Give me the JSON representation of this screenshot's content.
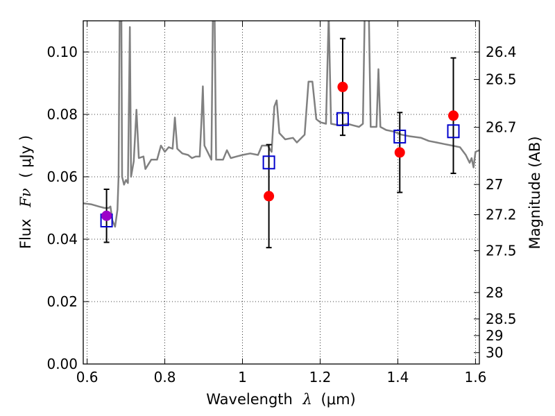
{
  "chart_data": {
    "type": "scatter",
    "xlabel": "Wavelength",
    "xlabel_symbol": "λ",
    "xlabel_unit": "(μm)",
    "ylabel": "Flux",
    "ylabel_symbol": "Fν",
    "ylabel_unit": "( μJy )",
    "y2label": "Magnitude (AB)",
    "xlim": [
      0.59,
      1.61
    ],
    "ylim": [
      0.0,
      0.11
    ],
    "grid": true,
    "grid_style": "dotted",
    "colors": {
      "spectrum": "#808080",
      "observed": "#ff0000",
      "model": "#0000cc",
      "blended": "#9b00c8",
      "errorbar": "#000000"
    },
    "x_ticks": [
      {
        "value": 0.6,
        "label": "0.6"
      },
      {
        "value": 0.8,
        "label": "0.8"
      },
      {
        "value": 1.0,
        "label": "1"
      },
      {
        "value": 1.2,
        "label": "1.2"
      },
      {
        "value": 1.4,
        "label": "1.4"
      },
      {
        "value": 1.6,
        "label": "1.6"
      }
    ],
    "y_ticks": [
      {
        "value": 0.0,
        "label": "0.00"
      },
      {
        "value": 0.02,
        "label": "0.02"
      },
      {
        "value": 0.04,
        "label": "0.04"
      },
      {
        "value": 0.06,
        "label": "0.06"
      },
      {
        "value": 0.08,
        "label": "0.08"
      },
      {
        "value": 0.1,
        "label": "0.10"
      }
    ],
    "y2_ticks": [
      {
        "mag": 26.4,
        "label": "26.4"
      },
      {
        "mag": 26.5,
        "label": "26.5"
      },
      {
        "mag": 26.7,
        "label": "26.7"
      },
      {
        "mag": 27.0,
        "label": "27"
      },
      {
        "mag": 27.2,
        "label": "27.2"
      },
      {
        "mag": 27.5,
        "label": "27.5"
      },
      {
        "mag": 28.0,
        "label": "28"
      },
      {
        "mag": 28.5,
        "label": "28.5"
      },
      {
        "mag": 29.0,
        "label": "29"
      },
      {
        "mag": 30.0,
        "label": "30"
      }
    ],
    "observed": [
      {
        "x": 0.65,
        "y": 0.0475,
        "err": 0.0085
      },
      {
        "x": 1.068,
        "y": 0.0538,
        "err": 0.0165
      },
      {
        "x": 1.258,
        "y": 0.0888,
        "err": 0.0155
      },
      {
        "x": 1.405,
        "y": 0.0678,
        "err": 0.0128
      },
      {
        "x": 1.543,
        "y": 0.0796,
        "err": 0.0185
      }
    ],
    "model": [
      {
        "x": 0.65,
        "y": 0.046
      },
      {
        "x": 1.068,
        "y": 0.0646
      },
      {
        "x": 1.258,
        "y": 0.0785
      },
      {
        "x": 1.405,
        "y": 0.0729
      },
      {
        "x": 1.543,
        "y": 0.0746
      }
    ],
    "spectrum": [
      [
        0.59,
        0.0515
      ],
      [
        0.61,
        0.0512
      ],
      [
        0.63,
        0.0505
      ],
      [
        0.645,
        0.05
      ],
      [
        0.655,
        0.05
      ],
      [
        0.66,
        0.0505
      ],
      [
        0.665,
        0.046
      ],
      [
        0.672,
        0.044
      ],
      [
        0.678,
        0.0495
      ],
      [
        0.681,
        0.06
      ],
      [
        0.684,
        0.115
      ],
      [
        0.688,
        0.115
      ],
      [
        0.69,
        0.06
      ],
      [
        0.695,
        0.0575
      ],
      [
        0.7,
        0.059
      ],
      [
        0.705,
        0.058
      ],
      [
        0.71,
        0.108
      ],
      [
        0.713,
        0.06
      ],
      [
        0.72,
        0.065
      ],
      [
        0.727,
        0.0815
      ],
      [
        0.733,
        0.066
      ],
      [
        0.745,
        0.0665
      ],
      [
        0.75,
        0.0625
      ],
      [
        0.765,
        0.0655
      ],
      [
        0.78,
        0.0655
      ],
      [
        0.79,
        0.07
      ],
      [
        0.8,
        0.068
      ],
      [
        0.81,
        0.0695
      ],
      [
        0.82,
        0.069
      ],
      [
        0.826,
        0.079
      ],
      [
        0.832,
        0.069
      ],
      [
        0.845,
        0.0675
      ],
      [
        0.86,
        0.067
      ],
      [
        0.87,
        0.066
      ],
      [
        0.88,
        0.0665
      ],
      [
        0.89,
        0.0665
      ],
      [
        0.895,
        0.0795
      ],
      [
        0.898,
        0.089
      ],
      [
        0.902,
        0.07
      ],
      [
        0.912,
        0.0675
      ],
      [
        0.92,
        0.0655
      ],
      [
        0.924,
        0.115
      ],
      [
        0.928,
        0.115
      ],
      [
        0.932,
        0.0655
      ],
      [
        0.95,
        0.0655
      ],
      [
        0.96,
        0.0685
      ],
      [
        0.97,
        0.066
      ],
      [
        0.985,
        0.0665
      ],
      [
        1.0,
        0.067
      ],
      [
        1.02,
        0.0675
      ],
      [
        1.04,
        0.067
      ],
      [
        1.05,
        0.07
      ],
      [
        1.065,
        0.07
      ],
      [
        1.075,
        0.068
      ],
      [
        1.082,
        0.0825
      ],
      [
        1.088,
        0.0845
      ],
      [
        1.095,
        0.074
      ],
      [
        1.11,
        0.072
      ],
      [
        1.13,
        0.0725
      ],
      [
        1.14,
        0.071
      ],
      [
        1.16,
        0.0735
      ],
      [
        1.17,
        0.0905
      ],
      [
        1.18,
        0.0905
      ],
      [
        1.19,
        0.0785
      ],
      [
        1.2,
        0.0775
      ],
      [
        1.215,
        0.077
      ],
      [
        1.222,
        0.112
      ],
      [
        1.228,
        0.077
      ],
      [
        1.25,
        0.0765
      ],
      [
        1.27,
        0.077
      ],
      [
        1.285,
        0.0765
      ],
      [
        1.3,
        0.076
      ],
      [
        1.31,
        0.077
      ],
      [
        1.315,
        0.115
      ],
      [
        1.325,
        0.115
      ],
      [
        1.33,
        0.076
      ],
      [
        1.345,
        0.076
      ],
      [
        1.35,
        0.0945
      ],
      [
        1.355,
        0.076
      ],
      [
        1.37,
        0.075
      ],
      [
        1.39,
        0.0745
      ],
      [
        1.41,
        0.0735
      ],
      [
        1.43,
        0.073
      ],
      [
        1.46,
        0.0725
      ],
      [
        1.48,
        0.0715
      ],
      [
        1.5,
        0.071
      ],
      [
        1.52,
        0.0705
      ],
      [
        1.54,
        0.07
      ],
      [
        1.56,
        0.0695
      ],
      [
        1.575,
        0.067
      ],
      [
        1.585,
        0.0645
      ],
      [
        1.59,
        0.066
      ],
      [
        1.595,
        0.063
      ],
      [
        1.6,
        0.068
      ],
      [
        1.61,
        0.0685
      ]
    ]
  }
}
